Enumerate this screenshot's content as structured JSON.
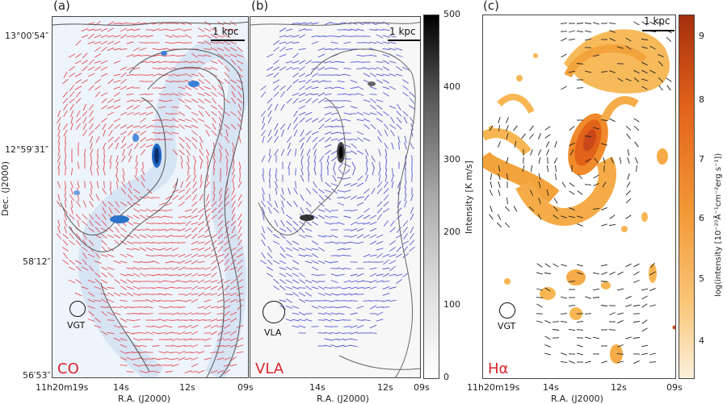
{
  "panels": [
    {
      "letter": "(a)",
      "tag": "CO",
      "tag_color": "#d9262c",
      "scale": "1 kpc",
      "beam": "VGT",
      "bg": "#eef4fb",
      "vec": "#e0505a"
    },
    {
      "letter": "(b)",
      "tag": "VLA",
      "tag_color": "#d9262c",
      "scale": "1 kpc",
      "beam": "VLA",
      "bg": "#f7f7f7",
      "vec": "#5a5ad0"
    },
    {
      "letter": "(c)",
      "tag": "Hα",
      "tag_color": "#d9262c",
      "scale": "1 kpc",
      "beam": "VGT",
      "bg": "#ffffff",
      "vec": "#222222"
    }
  ],
  "dec_ticks": [
    "13°00′54″",
    "12°59′31″",
    "58′12″",
    "56′53″"
  ],
  "dec_label": "Dec. (J2000)",
  "ra_ticks_a": [
    "11h20m19s",
    "14s",
    "12s",
    "09s"
  ],
  "ra_ticks_b": [
    "14s",
    "12s",
    "09s"
  ],
  "ra_ticks_c": [
    "11h20m19s",
    "14s",
    "12s",
    "09s"
  ],
  "ra_label": "R.A. (J2000)",
  "colorbar_gray": {
    "title": "Intensity [K m/s]",
    "ticks": [
      "500",
      "400",
      "300",
      "200",
      "100",
      "0"
    ]
  },
  "colorbar_orange": {
    "title": "log(intensity [10⁻²⁰Å⁻¹cm⁻²erg s⁻¹])",
    "ticks": [
      "9",
      "8",
      "7",
      "6",
      "5",
      "4"
    ]
  }
}
